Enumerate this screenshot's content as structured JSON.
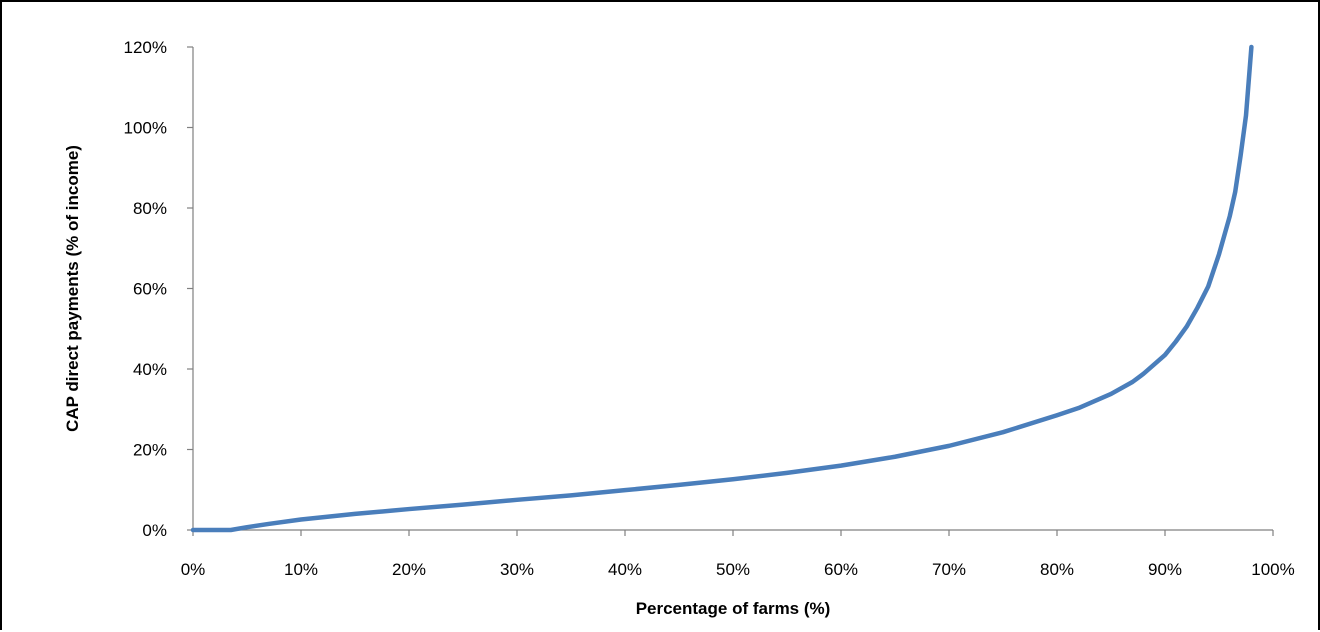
{
  "chart_data": {
    "type": "line",
    "xlabel": "Percentage of farms (%)",
    "ylabel": "CAP direct payments (% of income)",
    "xlim": [
      0,
      100
    ],
    "ylim": [
      0,
      120
    ],
    "x_ticks": [
      0,
      10,
      20,
      30,
      40,
      50,
      60,
      70,
      80,
      90,
      100
    ],
    "y_ticks": [
      0,
      20,
      40,
      60,
      80,
      100,
      120
    ],
    "x_tick_labels": [
      "0%",
      "10%",
      "20%",
      "30%",
      "40%",
      "50%",
      "60%",
      "70%",
      "80%",
      "90%",
      "100%"
    ],
    "y_tick_labels": [
      "0%",
      "20%",
      "40%",
      "60%",
      "80%",
      "100%",
      "120%"
    ],
    "grid": false,
    "legend": "none",
    "series": [
      {
        "color": "#4a7ebb",
        "x": [
          0,
          3.5,
          5,
          7,
          10,
          15,
          20,
          25,
          30,
          35,
          40,
          45,
          50,
          55,
          60,
          65,
          70,
          75,
          80,
          82,
          85,
          87,
          88,
          90,
          91,
          92,
          93,
          94,
          95,
          96,
          96.5,
          97,
          97.5,
          98
        ],
        "y": [
          0,
          0,
          0.7,
          1.5,
          2.6,
          4.0,
          5.2,
          6.3,
          7.5,
          8.6,
          9.9,
          11.2,
          12.6,
          14.2,
          16.0,
          18.2,
          20.9,
          24.3,
          28.5,
          30.3,
          33.8,
          36.8,
          38.8,
          43.5,
          46.8,
          50.5,
          55.2,
          60.5,
          68.5,
          78,
          84,
          93,
          103,
          120
        ]
      }
    ]
  }
}
